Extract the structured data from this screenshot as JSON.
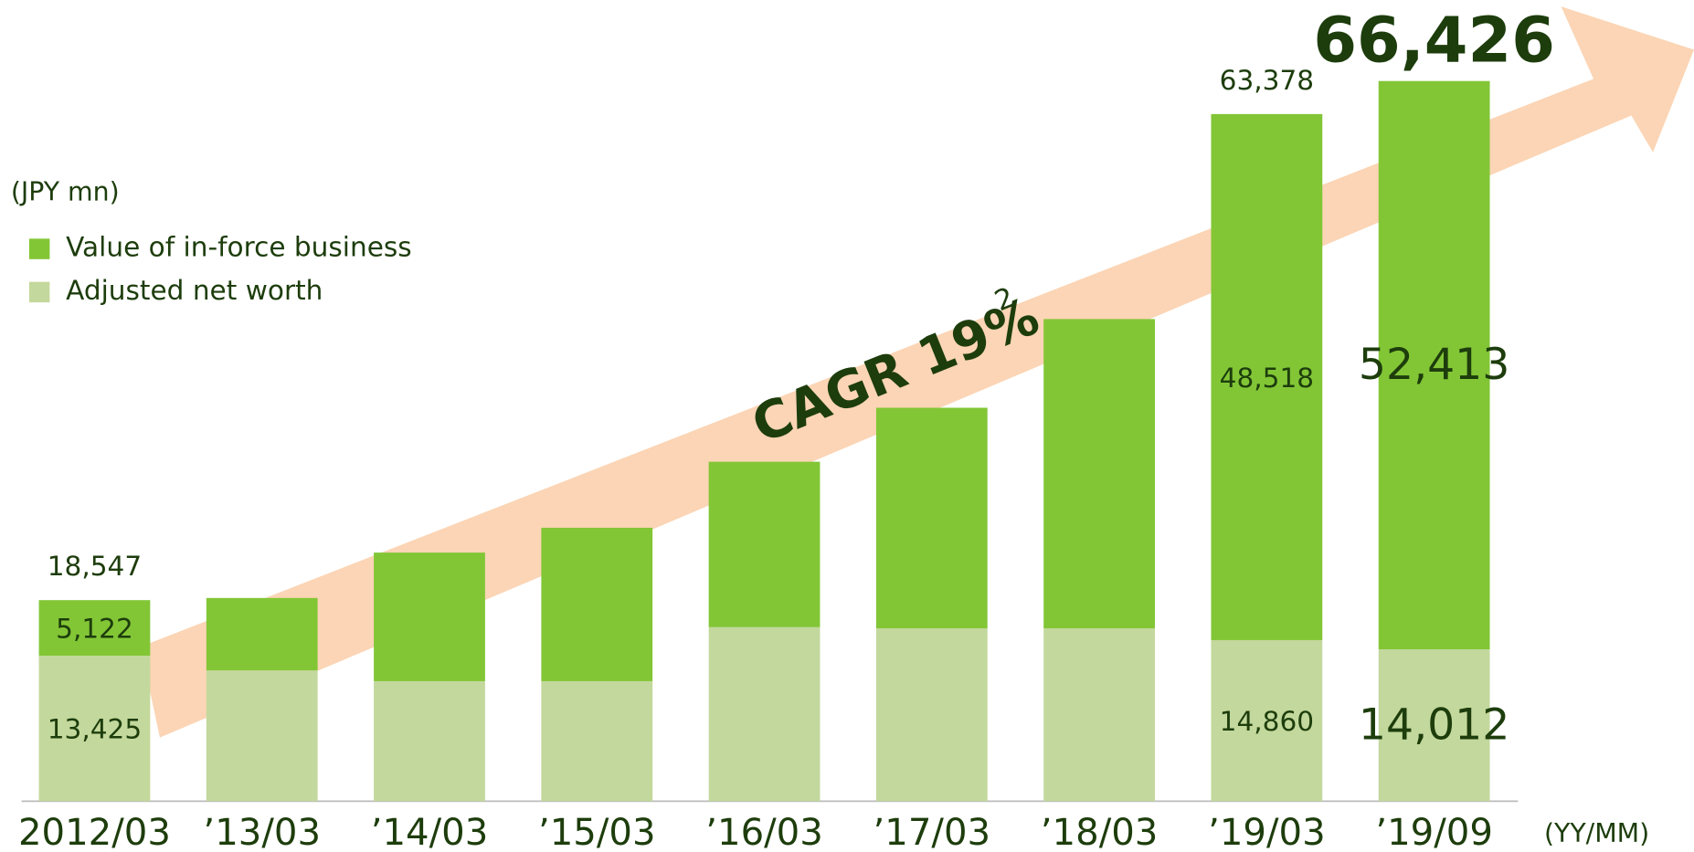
{
  "chart_data": {
    "type": "stacked_bar",
    "unit_label": "(JPY mn)",
    "x_unit_label": "(YY/MM)",
    "annotation": "CAGR 19%",
    "annotation_footnote": "2",
    "categories": [
      "2012/03",
      "’13/03",
      "’14/03",
      "’15/03",
      "’16/03",
      "’17/03",
      "’18/03",
      "’19/03",
      "’19/09"
    ],
    "series": [
      {
        "name": "Adjusted net worth",
        "color": "#c3d89c",
        "values": [
          13425,
          12065,
          11070,
          11070,
          16050,
          15950,
          15950,
          14860,
          14012
        ],
        "value_labels": [
          "13,425",
          null,
          null,
          null,
          null,
          null,
          null,
          "14,860",
          "14,012"
        ]
      },
      {
        "name": "Value of in-force business",
        "color": "#82c636",
        "values": [
          5122,
          6680,
          11860,
          14150,
          15260,
          20340,
          28520,
          48518,
          52413
        ],
        "value_labels": [
          "5,122",
          null,
          null,
          null,
          null,
          null,
          null,
          "48,518",
          "52,413"
        ]
      }
    ],
    "totals": [
      18547,
      null,
      null,
      null,
      null,
      null,
      null,
      63378,
      66426
    ],
    "total_labels": [
      "18,547",
      null,
      null,
      null,
      null,
      null,
      null,
      "63,378",
      "66,426"
    ]
  }
}
